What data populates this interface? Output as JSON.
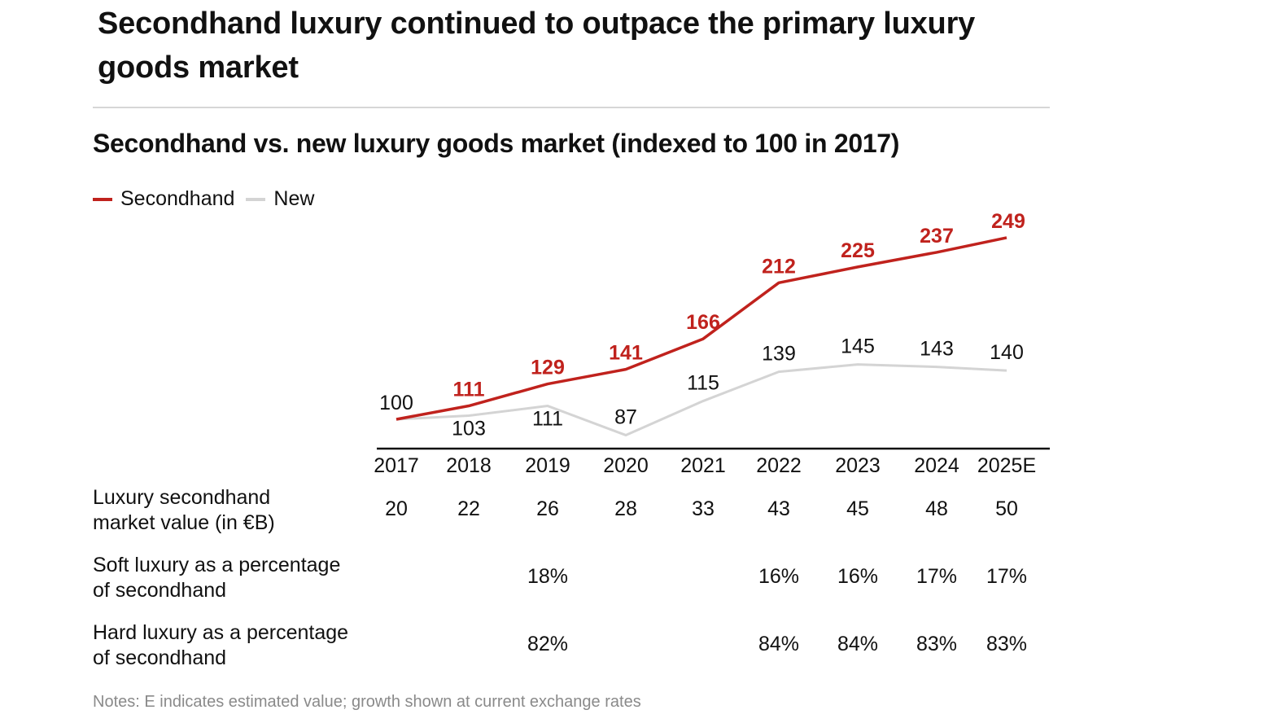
{
  "title": "Secondhand luxury continued to outpace the primary luxury goods market",
  "chart_data": {
    "type": "line",
    "title": "Secondhand vs. new luxury goods market (indexed to 100 in 2017)",
    "categories": [
      "2017",
      "2018",
      "2019",
      "2020",
      "2021",
      "2022",
      "2023",
      "2024",
      "2025E"
    ],
    "series": [
      {
        "name": "Secondhand",
        "color": "#c0221d",
        "values": [
          100,
          111,
          129,
          141,
          166,
          212,
          225,
          237,
          249
        ]
      },
      {
        "name": "New",
        "color": "#d4d4d4",
        "values": [
          100,
          103,
          111,
          87,
          115,
          139,
          145,
          143,
          140
        ]
      }
    ],
    "ylim": [
      80,
      260
    ],
    "legend": "top-left",
    "grid": false
  },
  "table": {
    "rows": [
      {
        "label_lines": [
          "Luxury secondhand",
          "market value (in €B)"
        ],
        "values": [
          "20",
          "22",
          "26",
          "28",
          "33",
          "43",
          "45",
          "48",
          "50"
        ]
      },
      {
        "label_lines": [
          "Soft luxury as a percentage",
          "of secondhand"
        ],
        "values": [
          "",
          "",
          "18%",
          "",
          "",
          "16%",
          "16%",
          "17%",
          "17%"
        ]
      },
      {
        "label_lines": [
          "Hard luxury as a percentage",
          "of secondhand"
        ],
        "values": [
          "",
          "",
          "82%",
          "",
          "",
          "84%",
          "84%",
          "83%",
          "83%"
        ]
      }
    ]
  },
  "notes": "Notes: E indicates estimated value; growth shown at current exchange rates"
}
